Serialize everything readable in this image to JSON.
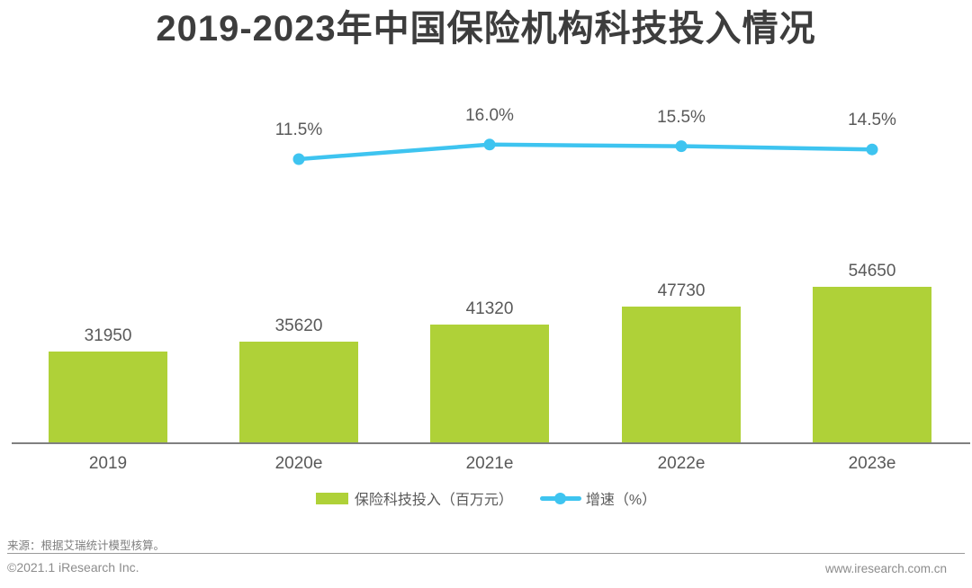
{
  "title": "2019-2023年中国保险机构科技投入情况",
  "chart_data": {
    "type": "bar+line",
    "title": "2019-2023年中国保险机构科技投入情况",
    "categories": [
      "2019",
      "2020e",
      "2021e",
      "2022e",
      "2023e"
    ],
    "series": [
      {
        "name": "保险科技投入（百万元）",
        "type": "bar",
        "color": "#AFD138",
        "values": [
          31950,
          35620,
          41320,
          47730,
          54650
        ],
        "value_labels": [
          "31950",
          "35620",
          "41320",
          "47730",
          "54650"
        ]
      },
      {
        "name": "增速（%）",
        "type": "line",
        "color": "#3EC4F0",
        "values": [
          null,
          11.5,
          16.0,
          15.5,
          14.5
        ],
        "value_labels": [
          "",
          "11.5%",
          "16.0%",
          "15.5%",
          "14.5%"
        ]
      }
    ],
    "xlabel": "",
    "ylabel": "",
    "grid": false,
    "legend_position": "bottom",
    "value_labels_shown": true
  },
  "legend": {
    "bar_label": "保险科技投入（百万元）",
    "line_label": "增速（%）"
  },
  "footer": {
    "source": "来源：根据艾瑞统计模型核算。",
    "copyright": "©2021.1 iResearch Inc.",
    "website": "www.iresearch.com.cn"
  },
  "colors": {
    "bar": "#AFD138",
    "line": "#3EC4F0",
    "title_text": "#3D3D3D",
    "label_text": "#595959",
    "axis_line": "#808080",
    "footer_text": "#8C8C8C"
  }
}
